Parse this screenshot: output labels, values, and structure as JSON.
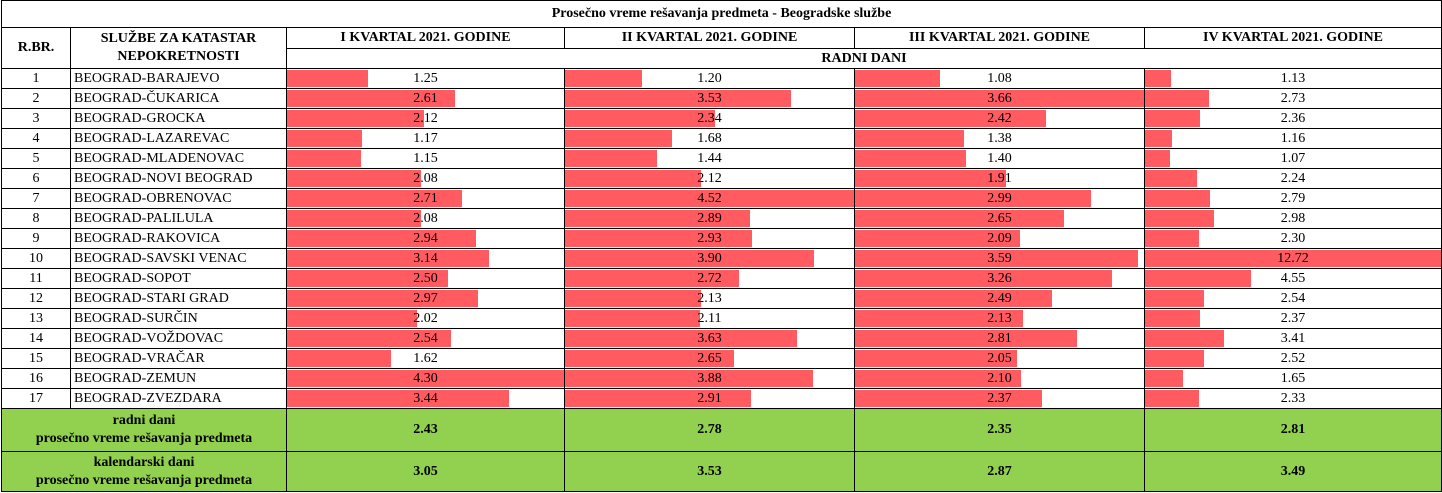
{
  "title": "Prosečno vreme rešavanja predmeta - Beogradske službe",
  "headers": {
    "rbr": "R.BR.",
    "sluzbe": [
      "SLUŽBE ZA KATASTAR",
      "NEPOKRETNOSTI"
    ],
    "quarters": [
      "I KVARTAL 2021. GODINE",
      "II KVARTAL 2021. GODINE",
      "III KVARTAL 2021. GODINE",
      "IV KVARTAL 2021. GODINE"
    ],
    "subheader": "RADNI DANI"
  },
  "bar_color": "#ff5b61",
  "summary_color": "#92d050",
  "rows": [
    {
      "rbr": "1",
      "name": "BEOGRAD-BARAJEVO",
      "values": [
        "1.25",
        "1.20",
        "1.08",
        "1.13"
      ]
    },
    {
      "rbr": "2",
      "name": "BEOGRAD-ČUKARICA",
      "values": [
        "2.61",
        "3.53",
        "3.66",
        "2.73"
      ]
    },
    {
      "rbr": "3",
      "name": "BEOGRAD-GROCKA",
      "values": [
        "2.12",
        "2.34",
        "2.42",
        "2.36"
      ]
    },
    {
      "rbr": "4",
      "name": "BEOGRAD-LAZAREVAC",
      "values": [
        "1.17",
        "1.68",
        "1.38",
        "1.16"
      ]
    },
    {
      "rbr": "5",
      "name": "BEOGRAD-MLADENOVAC",
      "values": [
        "1.15",
        "1.44",
        "1.40",
        "1.07"
      ]
    },
    {
      "rbr": "6",
      "name": "BEOGRAD-NOVI BEOGRAD",
      "values": [
        "2.08",
        "2.12",
        "1.91",
        "2.24"
      ]
    },
    {
      "rbr": "7",
      "name": "BEOGRAD-OBRENOVAC",
      "values": [
        "2.71",
        "4.52",
        "2.99",
        "2.79"
      ]
    },
    {
      "rbr": "8",
      "name": "BEOGRAD-PALILULA",
      "values": [
        "2.08",
        "2.89",
        "2.65",
        "2.98"
      ]
    },
    {
      "rbr": "9",
      "name": "BEOGRAD-RAKOVICA",
      "values": [
        "2.94",
        "2.93",
        "2.09",
        "2.30"
      ]
    },
    {
      "rbr": "10",
      "name": "BEOGRAD-SAVSKI VENAC",
      "values": [
        "3.14",
        "3.90",
        "3.59",
        "12.72"
      ]
    },
    {
      "rbr": "11",
      "name": "BEOGRAD-SOPOT",
      "values": [
        "2.50",
        "2.72",
        "3.26",
        "4.55"
      ]
    },
    {
      "rbr": "12",
      "name": "BEOGRAD-STARI GRAD",
      "values": [
        "2.97",
        "2.13",
        "2.49",
        "2.54"
      ]
    },
    {
      "rbr": "13",
      "name": "BEOGRAD-SURČIN",
      "values": [
        "2.02",
        "2.11",
        "2.13",
        "2.37"
      ]
    },
    {
      "rbr": "14",
      "name": "BEOGRAD-VOŽDOVAC",
      "values": [
        "2.54",
        "3.63",
        "2.81",
        "3.41"
      ]
    },
    {
      "rbr": "15",
      "name": "BEOGRAD-VRAČAR",
      "values": [
        "1.62",
        "2.65",
        "2.05",
        "2.52"
      ]
    },
    {
      "rbr": "16",
      "name": "BEOGRAD-ZEMUN",
      "values": [
        "4.30",
        "3.88",
        "2.10",
        "1.65"
      ]
    },
    {
      "rbr": "17",
      "name": "BEOGRAD-ZVEZDARA",
      "values": [
        "3.44",
        "2.91",
        "2.37",
        "2.33"
      ]
    }
  ],
  "summary": [
    {
      "label": [
        "radni dani",
        "prosečno vreme rešavanja predmeta"
      ],
      "values": [
        "2.43",
        "2.78",
        "2.35",
        "2.81"
      ]
    },
    {
      "label": [
        "kalendarski dani",
        "prosečno vreme rešavanja predmeta"
      ],
      "values": [
        "3.05",
        "3.53",
        "2.87",
        "3.49"
      ]
    }
  ]
}
